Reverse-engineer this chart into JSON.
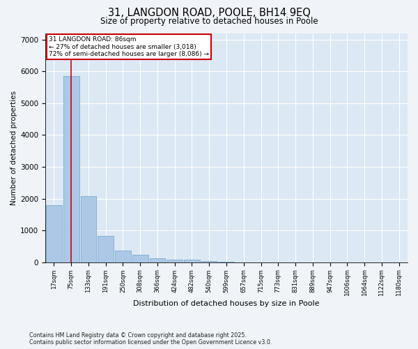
{
  "title_line1": "31, LANGDON ROAD, POOLE, BH14 9EQ",
  "title_line2": "Size of property relative to detached houses in Poole",
  "xlabel": "Distribution of detached houses by size in Poole",
  "ylabel": "Number of detached properties",
  "categories": [
    "17sqm",
    "75sqm",
    "133sqm",
    "191sqm",
    "250sqm",
    "308sqm",
    "366sqm",
    "424sqm",
    "482sqm",
    "540sqm",
    "599sqm",
    "657sqm",
    "715sqm",
    "773sqm",
    "831sqm",
    "889sqm",
    "947sqm",
    "1006sqm",
    "1064sqm",
    "1122sqm",
    "1180sqm"
  ],
  "values": [
    1800,
    5850,
    2080,
    830,
    370,
    230,
    130,
    90,
    90,
    40,
    10,
    0,
    0,
    0,
    0,
    0,
    0,
    0,
    0,
    0,
    0
  ],
  "bar_color": "#adc8e6",
  "bar_edge_color": "#7aaad0",
  "property_line_x": 1.0,
  "annotation_title": "31 LANGDON ROAD: 86sqm",
  "annotation_line2": "← 27% of detached houses are smaller (3,018)",
  "annotation_line3": "72% of semi-detached houses are larger (8,086) →",
  "annotation_box_color": "#cc0000",
  "vline_color": "#cc0000",
  "ylim": [
    0,
    7200
  ],
  "yticks": [
    0,
    1000,
    2000,
    3000,
    4000,
    5000,
    6000,
    7000
  ],
  "fig_bg_color": "#f0f4f8",
  "plot_bg_color": "#dce8f4",
  "grid_color": "#ffffff",
  "footer_line1": "Contains HM Land Registry data © Crown copyright and database right 2025.",
  "footer_line2": "Contains public sector information licensed under the Open Government Licence v3.0."
}
